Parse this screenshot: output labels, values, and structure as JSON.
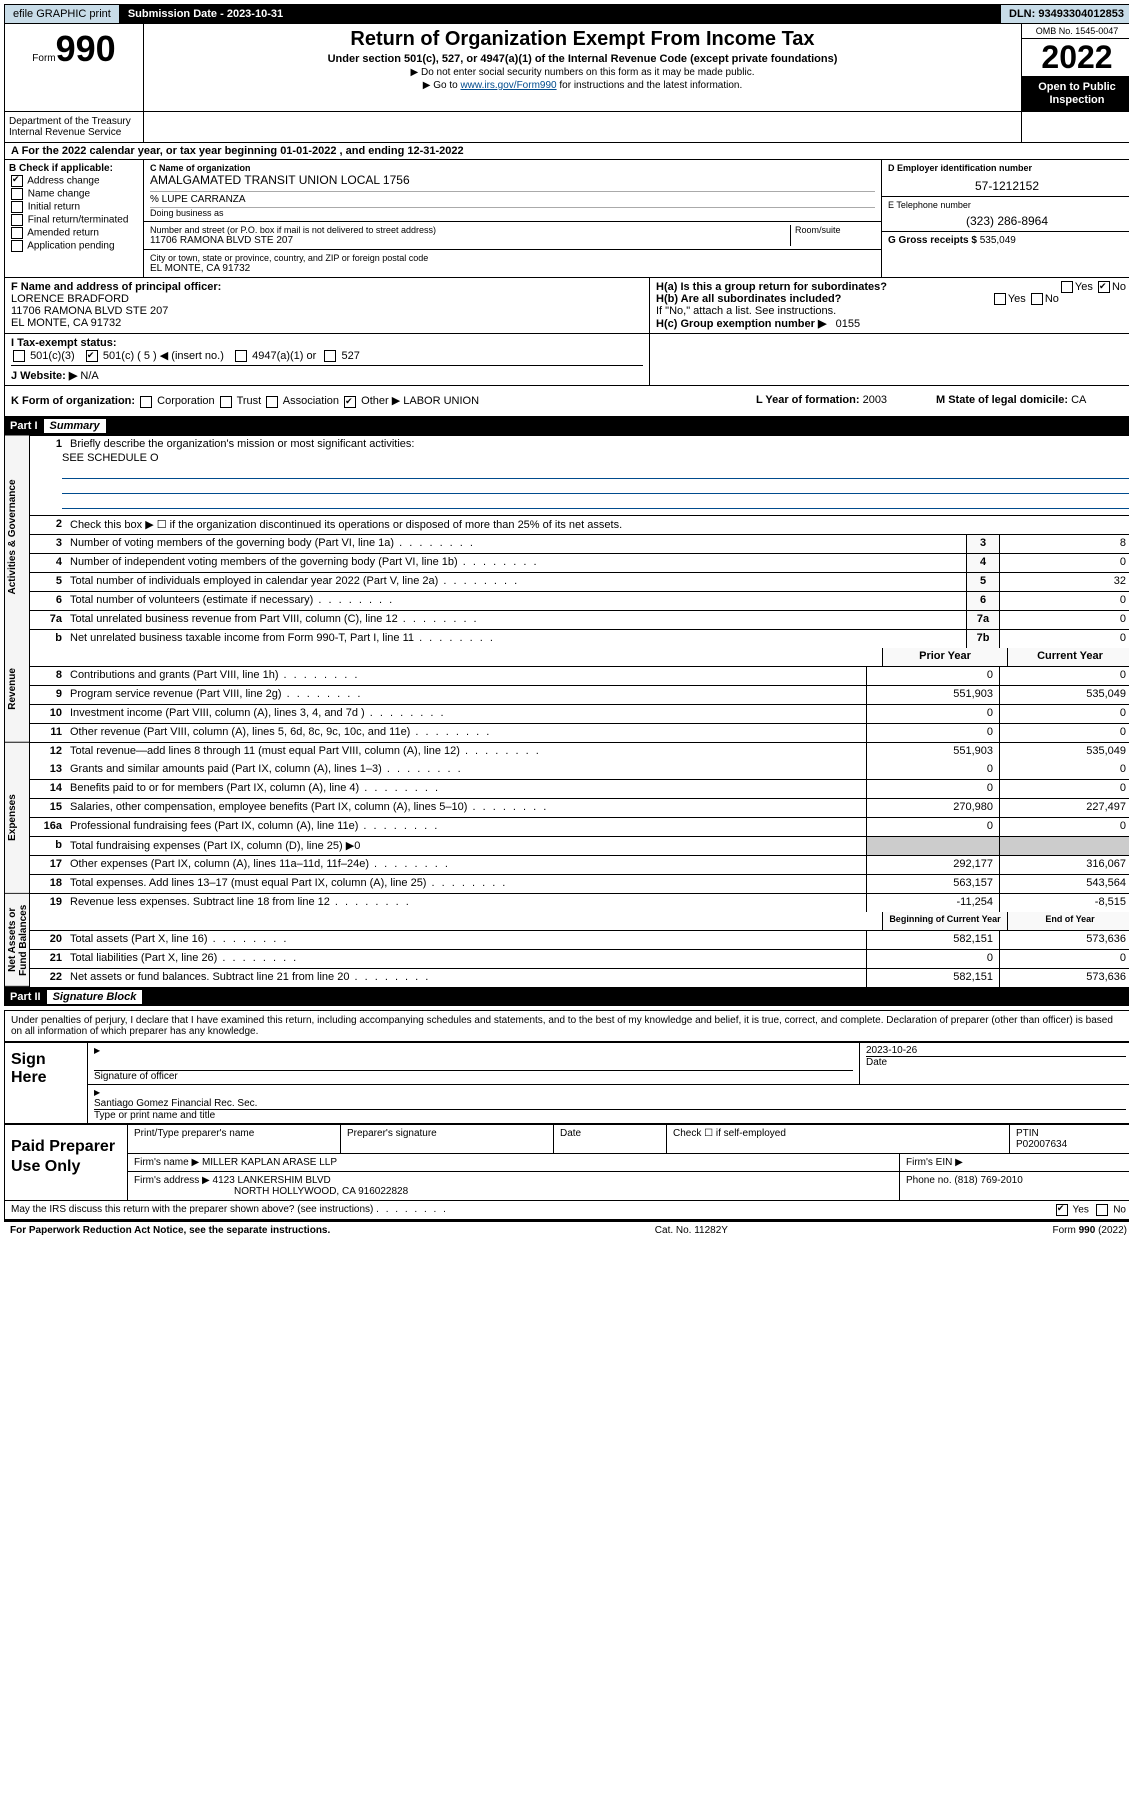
{
  "topbar": {
    "efile": "efile GRAPHIC print",
    "sub_label": "Submission Date - 2023-10-31",
    "dln": "DLN: 93493304012853"
  },
  "header": {
    "form_prefix": "Form",
    "form_num": "990",
    "title": "Return of Organization Exempt From Income Tax",
    "subtitle": "Under section 501(c), 527, or 4947(a)(1) of the Internal Revenue Code (except private foundations)",
    "note1": "▶ Do not enter social security numbers on this form as it may be made public.",
    "note2_pre": "▶ Go to ",
    "note2_link": "www.irs.gov/Form990",
    "note2_post": " for instructions and the latest information.",
    "dept": "Department of the Treasury\nInternal Revenue Service",
    "omb": "OMB No. 1545-0047",
    "taxyear": "2022",
    "open": "Open to Public Inspection"
  },
  "line_a": "A For the 2022 calendar year, or tax year beginning 01-01-2022   , and ending 12-31-2022",
  "section_b": {
    "label": "B Check if applicable:",
    "items": [
      "Address change",
      "Name change",
      "Initial return",
      "Final return/terminated",
      "Amended return",
      "Application pending"
    ],
    "checked_idx": 0
  },
  "section_c": {
    "name_label": "C Name of organization",
    "name": "AMALGAMATED TRANSIT UNION LOCAL 1756",
    "care_of": "% LUPE CARRANZA",
    "dba_label": "Doing business as",
    "addr_label": "Number and street (or P.O. box if mail is not delivered to street address)",
    "room_label": "Room/suite",
    "addr": "11706 RAMONA BLVD STE 207",
    "city_label": "City or town, state or province, country, and ZIP or foreign postal code",
    "city": "EL MONTE, CA  91732"
  },
  "section_d": {
    "label": "D Employer identification number",
    "val": "57-1212152"
  },
  "section_e": {
    "label": "E Telephone number",
    "val": "(323) 286-8964"
  },
  "section_g": {
    "label": "G Gross receipts $",
    "val": "535,049"
  },
  "section_f": {
    "label": "F Name and address of principal officer:",
    "name": "LORENCE BRADFORD",
    "addr1": "11706 RAMONA BLVD STE 207",
    "addr2": "EL MONTE, CA  91732"
  },
  "section_h": {
    "ha": "H(a)  Is this a group return for subordinates?",
    "ha_yes": "Yes",
    "ha_no": "No",
    "hb": "H(b)  Are all subordinates included?",
    "hb_yes": "Yes",
    "hb_no": "No",
    "hb_note": "If \"No,\" attach a list. See instructions.",
    "hc": "H(c)  Group exemption number ▶",
    "hc_val": "0155"
  },
  "section_i": {
    "label": "I   Tax-exempt status:",
    "o1": "501(c)(3)",
    "o2": "501(c) ( 5 ) ◀ (insert no.)",
    "o3": "4947(a)(1) or",
    "o4": "527"
  },
  "section_j": {
    "label": "J   Website: ▶",
    "val": "N/A"
  },
  "section_k": {
    "label": "K Form of organization:",
    "o1": "Corporation",
    "o2": "Trust",
    "o3": "Association",
    "o4": "Other ▶",
    "o4_val": "LABOR UNION"
  },
  "section_l": {
    "label": "L Year of formation:",
    "val": "2003"
  },
  "section_m": {
    "label": "M State of legal domicile:",
    "val": "CA"
  },
  "part1": {
    "num": "Part I",
    "title": "Summary"
  },
  "vtabs": [
    "Activities & Governance",
    "Revenue",
    "Expenses",
    "Net Assets or Fund Balances"
  ],
  "summary": {
    "r1_desc": "Briefly describe the organization's mission or most significant activities:",
    "r1_val": "SEE SCHEDULE O",
    "r2_desc": "Check this box ▶ ☐  if the organization discontinued its operations or disposed of more than 25% of its net assets.",
    "rows_gov": [
      {
        "n": "3",
        "d": "Number of voting members of the governing body (Part VI, line 1a)",
        "b": "3",
        "v": "8"
      },
      {
        "n": "4",
        "d": "Number of independent voting members of the governing body (Part VI, line 1b)",
        "b": "4",
        "v": "0"
      },
      {
        "n": "5",
        "d": "Total number of individuals employed in calendar year 2022 (Part V, line 2a)",
        "b": "5",
        "v": "32"
      },
      {
        "n": "6",
        "d": "Total number of volunteers (estimate if necessary)",
        "b": "6",
        "v": "0"
      },
      {
        "n": "7a",
        "d": "Total unrelated business revenue from Part VIII, column (C), line 12",
        "b": "7a",
        "v": "0"
      },
      {
        "n": "b",
        "d": "Net unrelated business taxable income from Form 990-T, Part I, line 11",
        "b": "7b",
        "v": "0"
      }
    ],
    "hdr_prior": "Prior Year",
    "hdr_curr": "Current Year",
    "rows_rev": [
      {
        "n": "8",
        "d": "Contributions and grants (Part VIII, line 1h)",
        "p": "0",
        "c": "0"
      },
      {
        "n": "9",
        "d": "Program service revenue (Part VIII, line 2g)",
        "p": "551,903",
        "c": "535,049"
      },
      {
        "n": "10",
        "d": "Investment income (Part VIII, column (A), lines 3, 4, and 7d )",
        "p": "0",
        "c": "0"
      },
      {
        "n": "11",
        "d": "Other revenue (Part VIII, column (A), lines 5, 6d, 8c, 9c, 10c, and 11e)",
        "p": "0",
        "c": "0"
      },
      {
        "n": "12",
        "d": "Total revenue—add lines 8 through 11 (must equal Part VIII, column (A), line 12)",
        "p": "551,903",
        "c": "535,049"
      }
    ],
    "rows_exp": [
      {
        "n": "13",
        "d": "Grants and similar amounts paid (Part IX, column (A), lines 1–3)",
        "p": "0",
        "c": "0"
      },
      {
        "n": "14",
        "d": "Benefits paid to or for members (Part IX, column (A), line 4)",
        "p": "0",
        "c": "0"
      },
      {
        "n": "15",
        "d": "Salaries, other compensation, employee benefits (Part IX, column (A), lines 5–10)",
        "p": "270,980",
        "c": "227,497"
      },
      {
        "n": "16a",
        "d": "Professional fundraising fees (Part IX, column (A), line 11e)",
        "p": "0",
        "c": "0"
      },
      {
        "n": "b",
        "d": "Total fundraising expenses (Part IX, column (D), line 25) ▶0",
        "p": "",
        "c": ""
      },
      {
        "n": "17",
        "d": "Other expenses (Part IX, column (A), lines 11a–11d, 11f–24e)",
        "p": "292,177",
        "c": "316,067"
      },
      {
        "n": "18",
        "d": "Total expenses. Add lines 13–17 (must equal Part IX, column (A), line 25)",
        "p": "563,157",
        "c": "543,564"
      },
      {
        "n": "19",
        "d": "Revenue less expenses. Subtract line 18 from line 12",
        "p": "-11,254",
        "c": "-8,515"
      }
    ],
    "hdr_begin": "Beginning of Current Year",
    "hdr_end": "End of Year",
    "rows_net": [
      {
        "n": "20",
        "d": "Total assets (Part X, line 16)",
        "p": "582,151",
        "c": "573,636"
      },
      {
        "n": "21",
        "d": "Total liabilities (Part X, line 26)",
        "p": "0",
        "c": "0"
      },
      {
        "n": "22",
        "d": "Net assets or fund balances. Subtract line 21 from line 20",
        "p": "582,151",
        "c": "573,636"
      }
    ]
  },
  "part2": {
    "num": "Part II",
    "title": "Signature Block"
  },
  "sig": {
    "declaration": "Under penalties of perjury, I declare that I have examined this return, including accompanying schedules and statements, and to the best of my knowledge and belief, it is true, correct, and complete. Declaration of preparer (other than officer) is based on all information of which preparer has any knowledge.",
    "sign_here": "Sign Here",
    "sig_officer": "Signature of officer",
    "date_label": "Date",
    "date_val": "2023-10-26",
    "officer_name": "Santiago Gomez Financial Rec. Sec.",
    "name_label": "Type or print name and title"
  },
  "paid": {
    "label": "Paid Preparer Use Only",
    "col1": "Print/Type preparer's name",
    "col2": "Preparer's signature",
    "col3": "Date",
    "col4_label": "Check ☐ if self-employed",
    "ptin_label": "PTIN",
    "ptin": "P02007634",
    "firm_name_label": "Firm's name   ▶",
    "firm_name": "MILLER KAPLAN ARASE LLP",
    "firm_ein_label": "Firm's EIN ▶",
    "firm_addr_label": "Firm's address ▶",
    "firm_addr1": "4123 LANKERSHIM BLVD",
    "firm_addr2": "NORTH HOLLYWOOD, CA  916022828",
    "firm_phone_label": "Phone no.",
    "firm_phone": "(818) 769-2010",
    "discuss": "May the IRS discuss this return with the preparer shown above? (see instructions)",
    "yes": "Yes",
    "no": "No"
  },
  "footer": {
    "left": "For Paperwork Reduction Act Notice, see the separate instructions.",
    "mid": "Cat. No. 11282Y",
    "right": "Form 990 (2022)"
  }
}
